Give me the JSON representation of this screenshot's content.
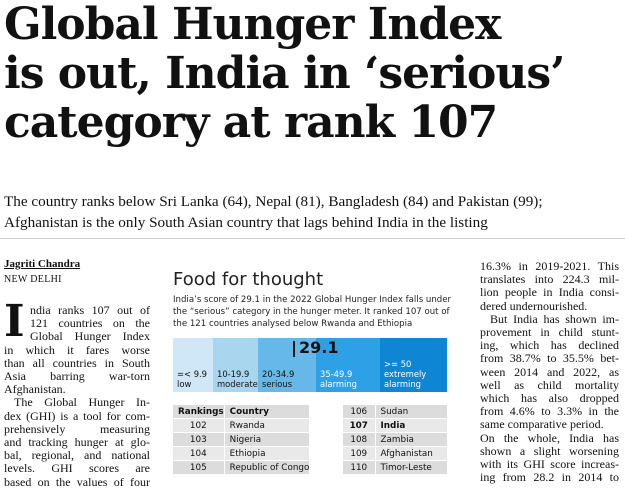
{
  "headline": {
    "line1": "Global Hunger Index",
    "line2": "is out, India in ‘serious’",
    "line3": "category at rank 107"
  },
  "subhead": {
    "line1": "The country ranks below Sri Lanka (64), Nepal (81), Bangladesh (84) and Pakistan (99);",
    "line2": "Afghanistan is the only South Asian country that lags behind India in the listing"
  },
  "byline": {
    "author": "Jagriti Chandra",
    "dateline": "NEW DELHI"
  },
  "article": {
    "dropcap": "I",
    "col1": [
      "ndia ranks 107 out of",
      "121 countries on the",
      "Global Hunger Index",
      "in which it fares worse",
      "than all countries in South",
      "Asia barring war-torn",
      "Afghanistan.",
      "The Global Hunger In-",
      "dex (GHI) is a tool for com-",
      "prehensively measuring",
      "and tracking hunger at glo-",
      "bal, regional, and national",
      "levels. GHI scores are",
      "based on the values of four"
    ],
    "col3": [
      "16.3% in 2019-2021. This",
      "translates into 224.3 mil-",
      "lion people in India consi-",
      "dered undernourished.",
      "But India has shown im-",
      "provement in child stunt-",
      "ing, which has declined",
      "from 38.7% to 35.5% bet-",
      "ween 2014 and 2022, as",
      "well as child mortality",
      "which has also dropped",
      "from 4.6% to 3.3% in the",
      "same comparative period.",
      "On the whole, India has",
      "shown a slight worsening",
      "with its GHI score increas-",
      "ing from 28.2 in 2014 to"
    ]
  },
  "infographic": {
    "title": "Food for thought",
    "description": [
      "India’s score of 29.1 in the 2022 Global Hunger Index falls under",
      "the “serious” category in the hunger meter. It ranked 107 out of",
      "the 121 countries analysed below Rwanda and Ethiopia"
    ],
    "score": "29.1",
    "scale": [
      {
        "range": "=< 9.9",
        "label": "low"
      },
      {
        "range": "10-19.9",
        "label": "moderate"
      },
      {
        "range": "20-34.9",
        "label": "serious"
      },
      {
        "range": "35-49.9",
        "label": "alarming"
      },
      {
        "range": ">= 50",
        "label": "extremely alarming"
      }
    ],
    "table": {
      "headers": [
        "Rankings",
        "Country"
      ],
      "left": [
        {
          "rank": "102",
          "country": "Rwanda"
        },
        {
          "rank": "103",
          "country": "Nigeria"
        },
        {
          "rank": "104",
          "country": "Ethiopia"
        },
        {
          "rank": "105",
          "country": "Republic of Congo"
        }
      ],
      "right": [
        {
          "rank": "106",
          "country": "Sudan"
        },
        {
          "rank": "107",
          "country": "India"
        },
        {
          "rank": "108",
          "country": "Zambia"
        },
        {
          "rank": "109",
          "country": "Afghanistan"
        },
        {
          "rank": "110",
          "country": "Timor-Leste"
        }
      ]
    }
  }
}
